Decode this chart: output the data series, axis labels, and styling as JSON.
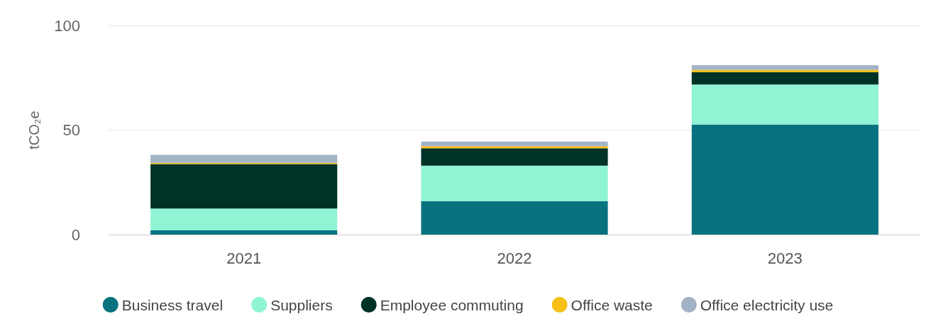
{
  "chart_data": {
    "type": "bar",
    "stacked": true,
    "ylabel": "tCO₂e",
    "categories": [
      "2021",
      "2022",
      "2023"
    ],
    "series": [
      {
        "name": "Business travel",
        "color": "#08727f",
        "values": [
          2,
          16,
          52.6
        ]
      },
      {
        "name": "Suppliers",
        "color": "#8ef4d4",
        "values": [
          10.5,
          17,
          19.2
        ]
      },
      {
        "name": "Employee commuting",
        "color": "#003228",
        "values": [
          21.2,
          8.3,
          5.8
        ]
      },
      {
        "name": "Office waste",
        "color": "#f5bf18",
        "values": [
          0.6,
          1,
          1.2
        ]
      },
      {
        "name": "Office electricity use",
        "color": "#a3b3c6",
        "values": [
          3.8,
          2.2,
          2.2
        ]
      }
    ],
    "ylim": [
      0,
      100
    ],
    "yticks": [
      0,
      50,
      100
    ],
    "grid": "y",
    "legend": "bottom"
  }
}
